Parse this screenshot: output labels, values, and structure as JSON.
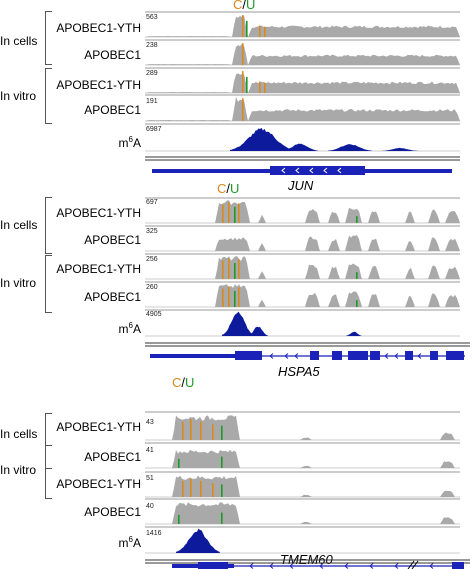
{
  "panels": [
    {
      "gene": "JUN",
      "cu_c": "C",
      "cu_sep": "/",
      "cu_u": "U",
      "group_labels": [
        "In cells",
        "In vitro"
      ],
      "tracks": [
        {
          "name": "APOBEC1-YTH",
          "scale": "563"
        },
        {
          "name": "APOBEC1",
          "scale": "238"
        },
        {
          "name": "APOBEC1-YTH",
          "scale": "289"
        },
        {
          "name": "APOBEC1",
          "scale": "191"
        },
        {
          "name": "m6A",
          "scale": "6987"
        }
      ]
    },
    {
      "gene": "HSPA5",
      "cu_c": "C",
      "cu_sep": "/",
      "cu_u": "U",
      "group_labels": [
        "In cells",
        "In vitro"
      ],
      "tracks": [
        {
          "name": "APOBEC1-YTH",
          "scale": "697"
        },
        {
          "name": "APOBEC1",
          "scale": "325"
        },
        {
          "name": "APOBEC1-YTH",
          "scale": "256"
        },
        {
          "name": "APOBEC1",
          "scale": "260"
        },
        {
          "name": "m6A",
          "scale": "4905"
        }
      ]
    },
    {
      "gene": "TMEM60",
      "cu_c": "C",
      "cu_sep": "/",
      "cu_u": "U",
      "group_labels": [
        "In cells",
        "In vitro"
      ],
      "tracks": [
        {
          "name": "APOBEC1-YTH",
          "scale": "43"
        },
        {
          "name": "APOBEC1",
          "scale": "41"
        },
        {
          "name": "APOBEC1-YTH",
          "scale": "51"
        },
        {
          "name": "APOBEC1",
          "scale": "40"
        },
        {
          "name": "m6A",
          "scale": "1416"
        }
      ]
    }
  ],
  "colors": {
    "coverage": "#a9a9a9",
    "m6a": "#0d1a9c",
    "c_base": "#d98a1b",
    "u_base": "#1f9a2a",
    "gene_model": "#1a22b8"
  }
}
